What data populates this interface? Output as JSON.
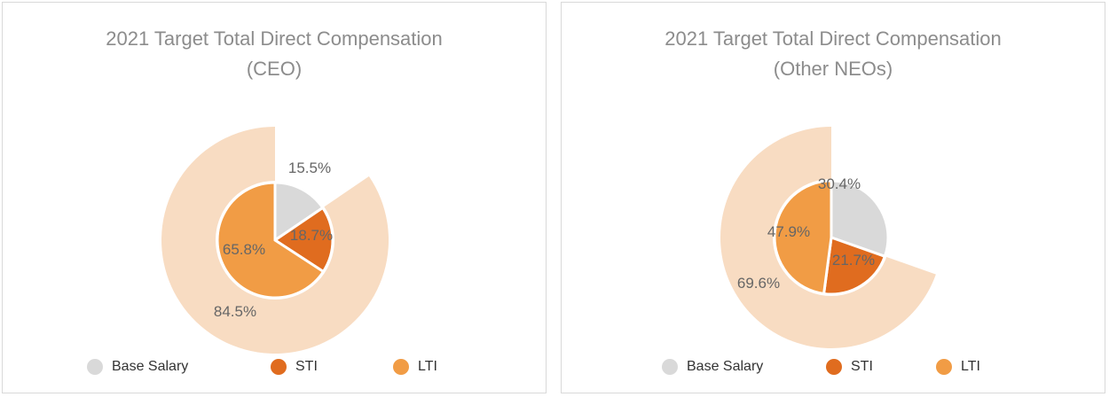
{
  "colors": {
    "base_salary": "#d9d9d9",
    "sti": "#e06c1f",
    "lti": "#f19c45",
    "outer_ring": "#f8dcc2",
    "outer_rest": "#ffffff"
  },
  "chart_data": [
    {
      "type": "pie",
      "title": [
        "2021 Target Total Direct Compensation",
        "(CEO)"
      ],
      "inner": {
        "categories": [
          "Base Salary",
          "STI",
          "LTI"
        ],
        "values": [
          15.5,
          18.7,
          65.8
        ],
        "labels": [
          "15.5%",
          "18.7%",
          "65.8%"
        ]
      },
      "outer": {
        "values": [
          15.5,
          84.5
        ],
        "labels": [
          "",
          "84.5%"
        ]
      },
      "legend": [
        "Base Salary",
        "STI",
        "LTI"
      ],
      "legend_position": "bottom"
    },
    {
      "type": "pie",
      "title": [
        "2021 Target Total Direct Compensation",
        "(Other NEOs)"
      ],
      "inner": {
        "categories": [
          "Base Salary",
          "STI",
          "LTI"
        ],
        "values": [
          30.4,
          21.7,
          47.9
        ],
        "labels": [
          "30.4%",
          "21.7%",
          "47.9%"
        ]
      },
      "outer": {
        "values": [
          30.4,
          69.6
        ],
        "labels": [
          "",
          "69.6%"
        ]
      },
      "legend": [
        "Base Salary",
        "STI",
        "LTI"
      ],
      "legend_position": "bottom"
    }
  ]
}
